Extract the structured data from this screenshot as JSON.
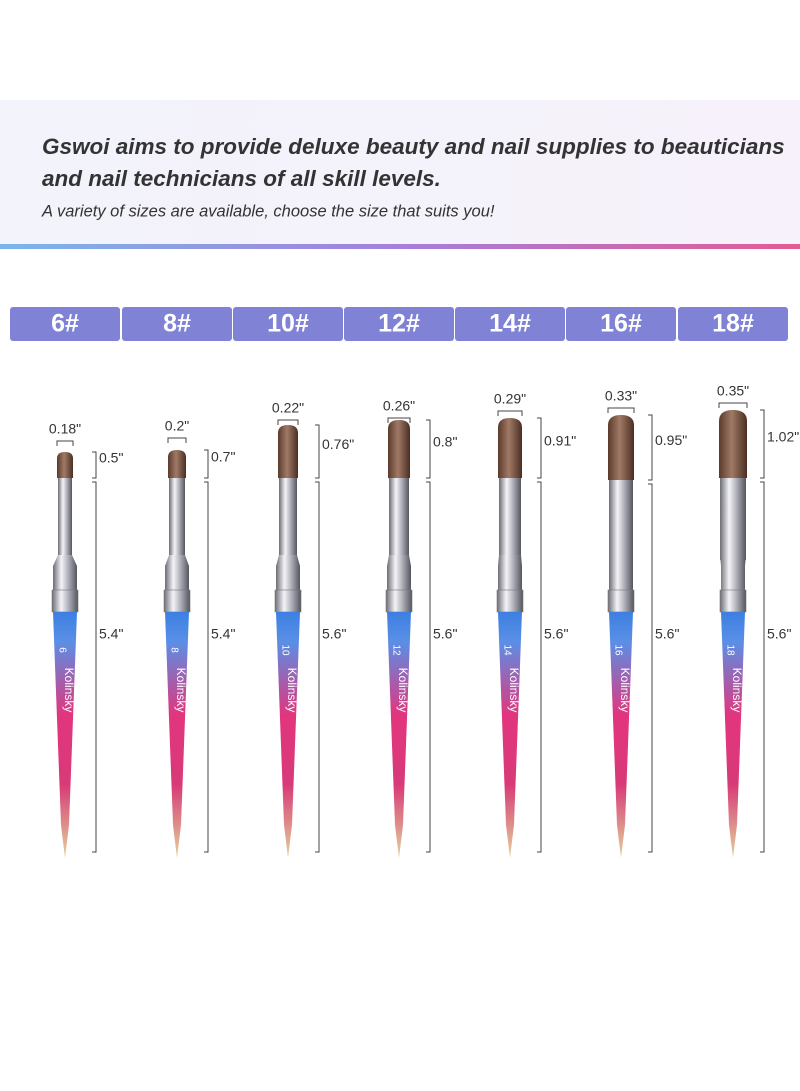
{
  "header": {
    "title_lines": [
      "Gswoi aims to provide deluxe beauty and nail supplies to beauticians",
      "and nail technicians of all skill levels."
    ],
    "subtitle": "A variety of sizes are available, choose the size that suits you!"
  },
  "brand": "Kolinsky",
  "sizes": [
    {
      "label": "6#",
      "head_width": "0.18\"",
      "head_length": "0.5\"",
      "handle_length": "5.4\"",
      "handle_number": "6"
    },
    {
      "label": "8#",
      "head_width": "0.2\"",
      "head_length": "0.7\"",
      "handle_length": "5.4\"",
      "handle_number": "8"
    },
    {
      "label": "10#",
      "head_width": "0.22\"",
      "head_length": "0.76\"",
      "handle_length": "5.6\"",
      "handle_number": "10"
    },
    {
      "label": "12#",
      "head_width": "0.26\"",
      "head_length": "0.8\"",
      "handle_length": "5.6\"",
      "handle_number": "12"
    },
    {
      "label": "14#",
      "head_width": "0.29\"",
      "head_length": "0.91\"",
      "handle_length": "5.6\"",
      "handle_number": "14"
    },
    {
      "label": "16#",
      "head_width": "0.33\"",
      "head_length": "0.95\"",
      "handle_length": "5.6\"",
      "handle_number": "16"
    },
    {
      "label": "18#",
      "head_width": "0.35\"",
      "head_length": "1.02\"",
      "handle_length": "5.6\"",
      "handle_number": "18"
    }
  ]
}
